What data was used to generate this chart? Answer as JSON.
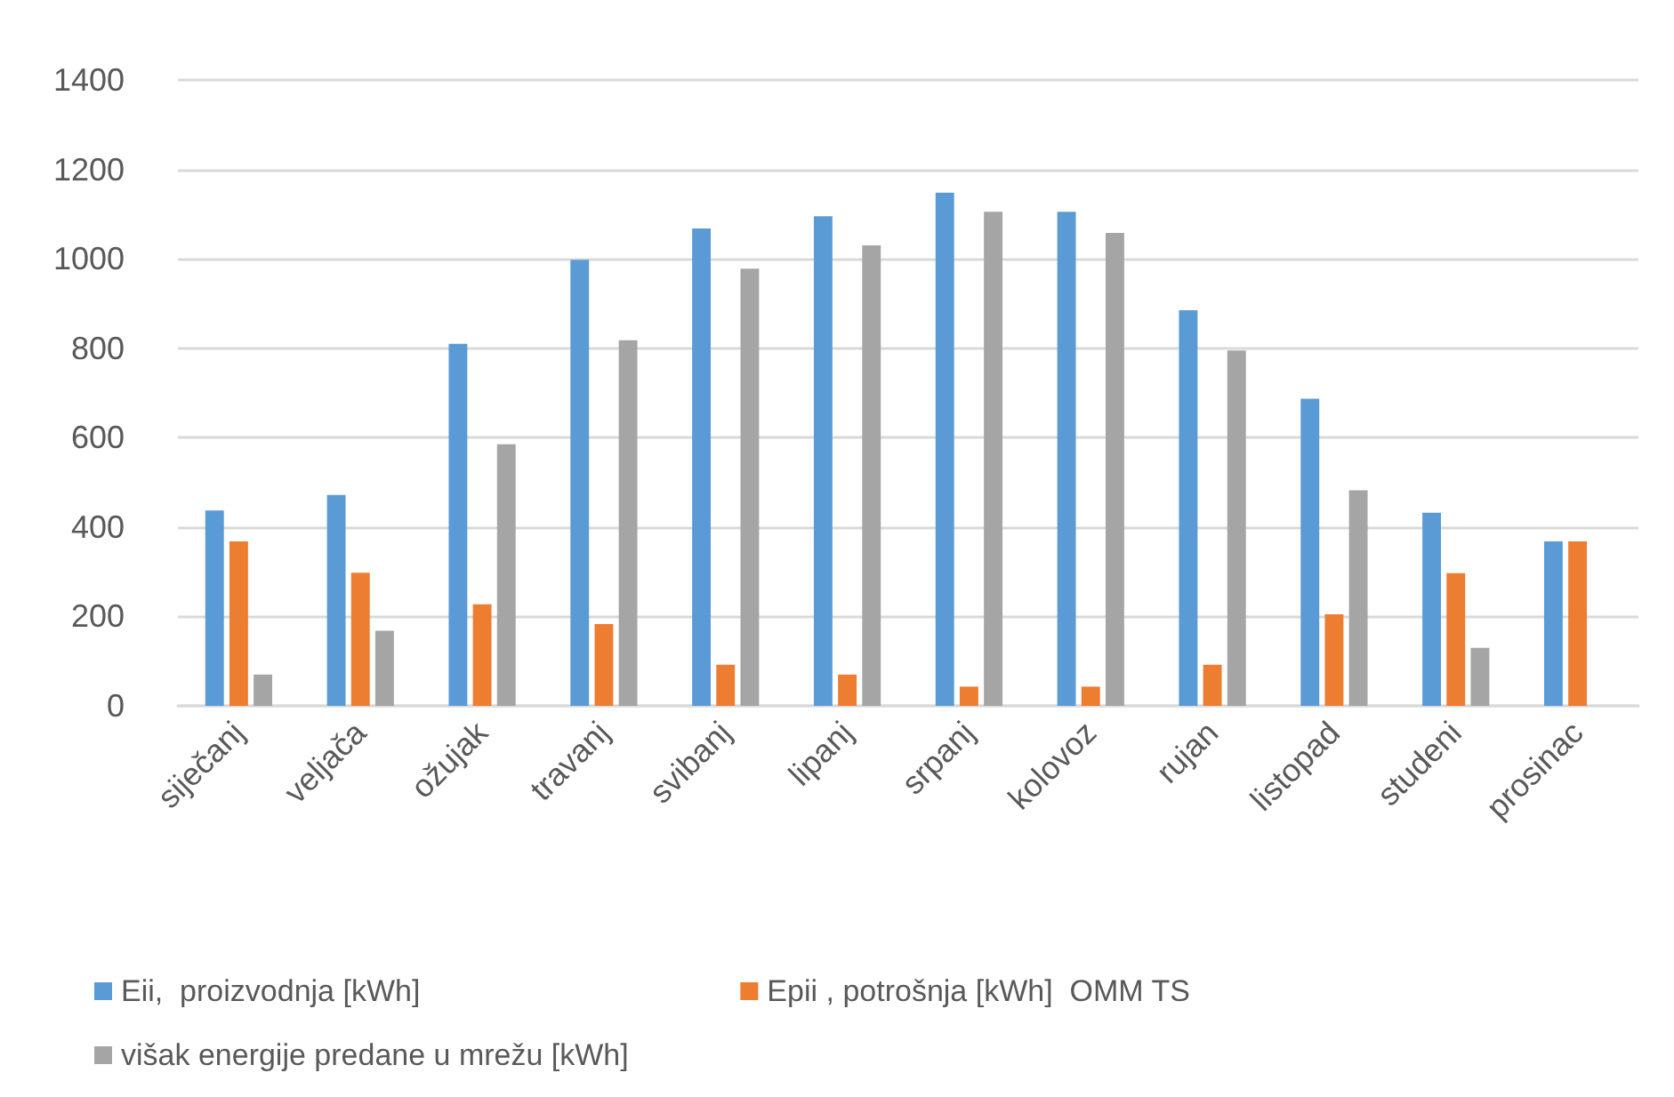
{
  "chart_data": {
    "type": "bar",
    "categories": [
      "siječanj",
      "veljača",
      "ožujak",
      "travanj",
      "svibanj",
      "lipanj",
      "srpanj",
      "kolovoz",
      "rujan",
      "listopad",
      "studeni",
      "prosinac"
    ],
    "series": [
      {
        "name": "Eii,  proizvodnja [kWh]",
        "color": "#5b9bd5",
        "values": [
          437,
          472,
          810,
          998,
          1068,
          1095,
          1148,
          1105,
          885,
          687,
          432,
          368
        ]
      },
      {
        "name": "Epii , potrošnja [kWh]  OMM TS",
        "color": "#ed7d31",
        "values": [
          368,
          298,
          227,
          183,
          92,
          70,
          43,
          43,
          92,
          205,
          297,
          368
        ]
      },
      {
        "name": "višak energije predane u mrežu [kWh]",
        "color": "#a5a5a5",
        "values": [
          70,
          168,
          585,
          818,
          978,
          1030,
          1105,
          1058,
          795,
          482,
          130,
          0
        ]
      }
    ],
    "ylim": [
      0,
      1400
    ],
    "yticks": [
      0,
      200,
      400,
      600,
      800,
      1000,
      1200,
      1400
    ],
    "grid": "y",
    "legend": "bottom"
  }
}
